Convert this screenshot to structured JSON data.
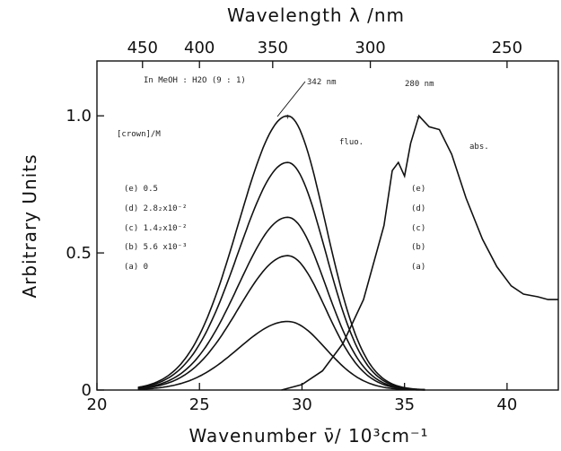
{
  "chart_data": {
    "type": "line",
    "xlabel": "Wavenumber  ν̄/ 10³cm⁻¹",
    "x2label": "Wavelength  λ /nm",
    "ylabel": "Arbitrary Units",
    "xlim": [
      20,
      42.5
    ],
    "ylim": [
      0,
      1.2
    ],
    "xticks": [
      20,
      25,
      30,
      35,
      40
    ],
    "yticks": [
      {
        "v": 0,
        "label": "0"
      },
      {
        "v": 0.5,
        "label": "0.5"
      },
      {
        "v": 1.0,
        "label": "1.0"
      }
    ],
    "x2ticks": [
      {
        "nm": 450,
        "label": "450"
      },
      {
        "nm": 400,
        "label": "400"
      },
      {
        "nm": 350,
        "label": "350"
      },
      {
        "nm": 300,
        "label": "300"
      },
      {
        "nm": 250,
        "label": "250"
      }
    ],
    "annotations": {
      "solvent": "In MeOH : H2O   (9 : 1)",
      "peak_fl": "342 nm",
      "peak_abs": "280 nm",
      "crown_header": "[crown]/M",
      "fluo": "fluo.",
      "abs": "abs.",
      "conc_e": "(e) 0.5",
      "conc_d": "(d) 2.8₂x10⁻²",
      "conc_c": "(c) 1.4₂x10⁻²",
      "conc_b": "(b) 5.6 x10⁻³",
      "conc_a": "(a)  0",
      "abs_e": "(e)",
      "abs_d": "(d)",
      "abs_c": "(c)",
      "abs_b": "(b)",
      "abs_a": "(a)"
    },
    "series": [
      {
        "name": "(e)",
        "kind": "fluorescence",
        "peak_x": 29.3,
        "peak": 1.0,
        "sigma_left": 2.4,
        "sigma_right": 1.85
      },
      {
        "name": "(d)",
        "kind": "fluorescence",
        "peak_x": 29.3,
        "peak": 0.83,
        "sigma_left": 2.4,
        "sigma_right": 1.85
      },
      {
        "name": "(c)",
        "kind": "fluorescence",
        "peak_x": 29.3,
        "peak": 0.63,
        "sigma_left": 2.4,
        "sigma_right": 1.85
      },
      {
        "name": "(b)",
        "kind": "fluorescence",
        "peak_x": 29.3,
        "peak": 0.49,
        "sigma_left": 2.4,
        "sigma_right": 1.85
      },
      {
        "name": "(a)",
        "kind": "fluorescence",
        "peak_x": 29.3,
        "peak": 0.25,
        "sigma_left": 2.4,
        "sigma_right": 1.85
      },
      {
        "name": "abs.",
        "kind": "absorption",
        "x": [
          29.0,
          30.0,
          31.0,
          32.0,
          33.0,
          34.0,
          34.4,
          34.7,
          35.0,
          35.3,
          35.7,
          36.2,
          36.7,
          37.3,
          38.0,
          38.8,
          39.5,
          40.2,
          40.8,
          41.5,
          42.0,
          42.5
        ],
        "y": [
          0.0,
          0.02,
          0.07,
          0.17,
          0.33,
          0.6,
          0.8,
          0.83,
          0.78,
          0.9,
          1.0,
          0.96,
          0.95,
          0.86,
          0.7,
          0.55,
          0.45,
          0.38,
          0.35,
          0.34,
          0.33,
          0.33
        ]
      }
    ]
  }
}
